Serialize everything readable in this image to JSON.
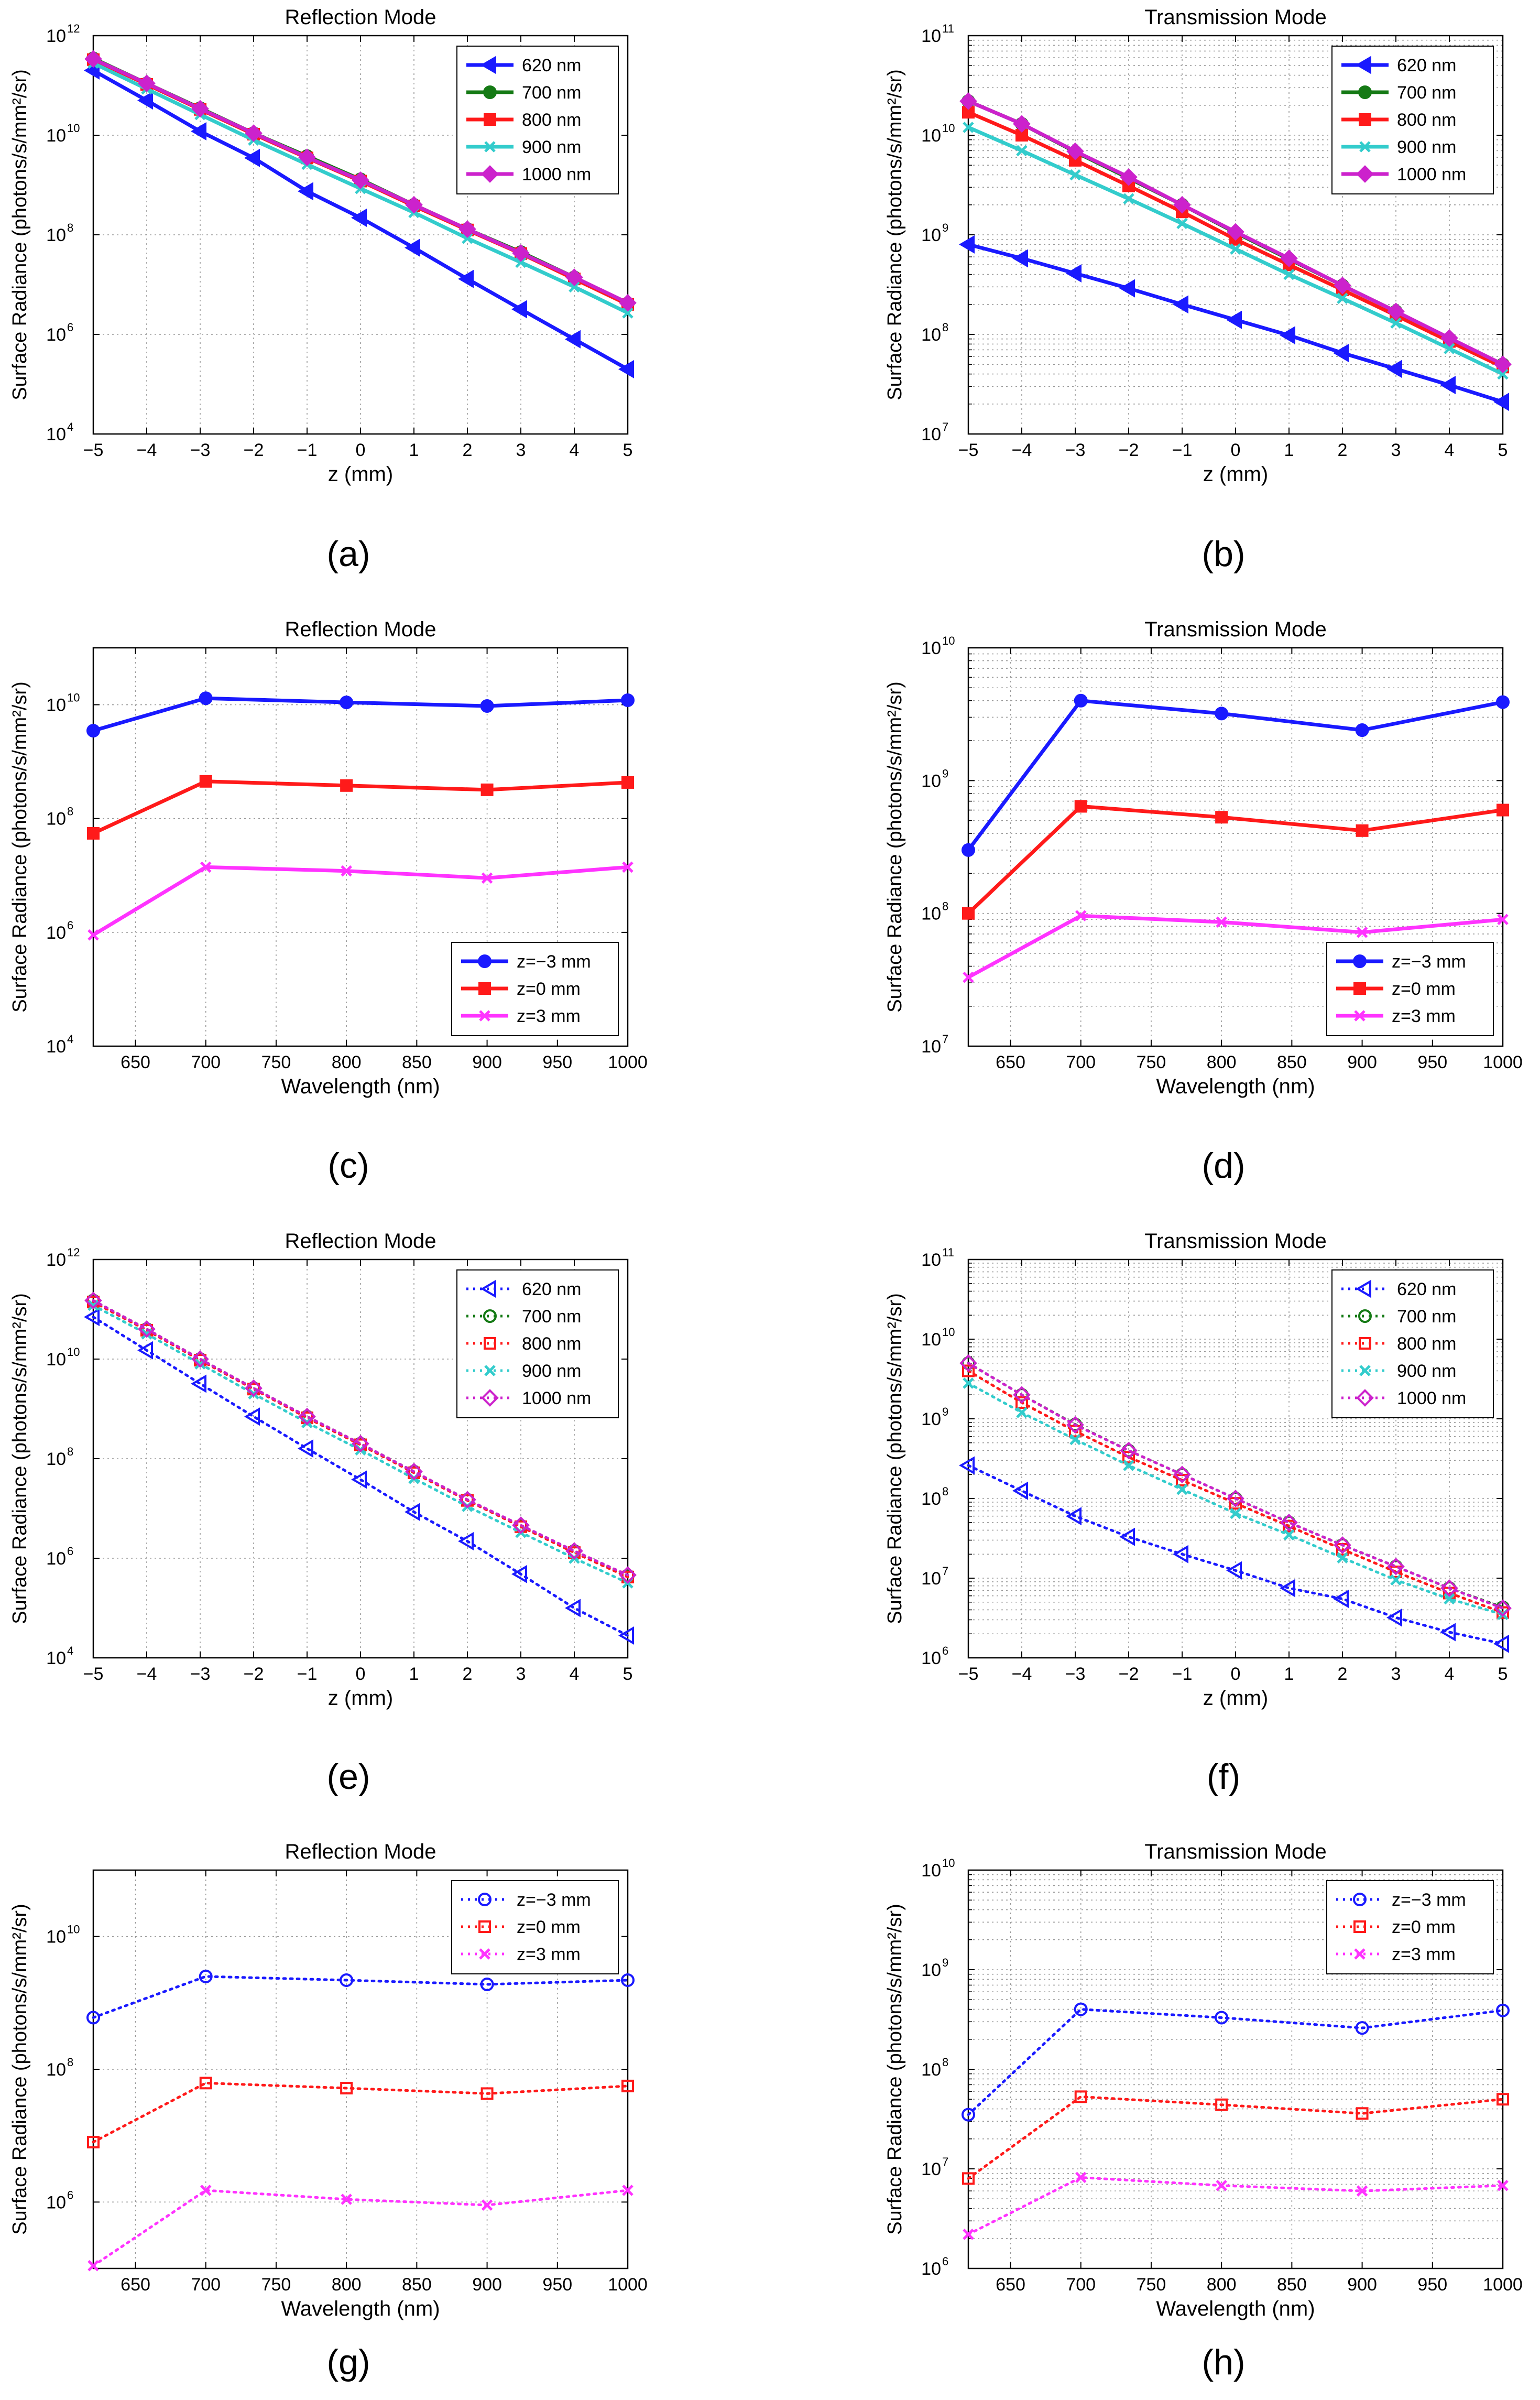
{
  "figure": {
    "captions": [
      "(a)",
      "(b)",
      "(c)",
      "(d)",
      "(e)",
      "(f)",
      "(g)",
      "(h)"
    ]
  },
  "colors": {
    "620": "#1a1aff",
    "700": "#157a15",
    "800": "#ff1a1a",
    "900": "#33cccc",
    "1000": "#cc22cc",
    "zm3": "#1a1aff",
    "z0": "#ff1a1a",
    "z3": "#ff33ff"
  },
  "chart_data": [
    {
      "id": "a",
      "type": "line",
      "title": "Reflection Mode",
      "xlabel": "z (mm)",
      "ylabel": "Surface Radiance (photons/s/mm²/sr)",
      "yscale": "log",
      "xlim": [
        -5,
        5
      ],
      "ylim_exp": [
        4,
        12
      ],
      "xticks": [
        -5,
        -4,
        -3,
        -2,
        -1,
        0,
        1,
        2,
        3,
        4,
        5
      ],
      "xticklabels": [
        "−5",
        "−4",
        "−3",
        "−2",
        "−1",
        "0",
        "1",
        "2",
        "3",
        "4",
        "5"
      ],
      "ytick_exps": [
        4,
        6,
        8,
        10,
        12
      ],
      "grid": "major",
      "linestyle": "solid",
      "legend_loc": "top-right",
      "x": [
        -5,
        -4,
        -3,
        -2,
        -1,
        0,
        1,
        2,
        3,
        4,
        5
      ],
      "series": [
        {
          "name": "620 nm",
          "color_key": "620",
          "marker": "tri-left",
          "values": [
            200000000000.0,
            50000000000.0,
            12000000000.0,
            3500000000.0,
            750000000.0,
            220000000.0,
            55000000.0,
            13000000.0,
            3200000.0,
            800000.0,
            200000.0
          ]
        },
        {
          "name": "700 nm",
          "color_key": "700",
          "marker": "circle",
          "values": [
            350000000000.0,
            110000000000.0,
            35000000000.0,
            11000000000.0,
            3800000000.0,
            1300000000.0,
            400000000.0,
            130000000.0,
            45000000.0,
            14000000.0,
            4200000.0
          ]
        },
        {
          "name": "800 nm",
          "color_key": "800",
          "marker": "square",
          "values": [
            330000000000.0,
            105000000000.0,
            33000000000.0,
            10500000000.0,
            3500000000.0,
            1200000000.0,
            380000000.0,
            125000000.0,
            42000000.0,
            13000000.0,
            4000000.0
          ]
        },
        {
          "name": "900 nm",
          "color_key": "900",
          "marker": "x",
          "values": [
            280000000000.0,
            85000000000.0,
            26000000000.0,
            8000000000.0,
            2600000000.0,
            850000000.0,
            280000000.0,
            85000000.0,
            28000000.0,
            9000000.0,
            2700000.0
          ]
        },
        {
          "name": "1000 nm",
          "color_key": "1000",
          "marker": "diamond",
          "values": [
            340000000000.0,
            110000000000.0,
            34000000000.0,
            11000000000.0,
            3600000000.0,
            1250000000.0,
            400000000.0,
            130000000.0,
            43000000.0,
            14000000.0,
            4300000.0
          ]
        }
      ]
    },
    {
      "id": "b",
      "type": "line",
      "title": "Transmission Mode",
      "xlabel": "z (mm)",
      "ylabel": "Surface Radiance (photons/s/mm²/sr)",
      "yscale": "log",
      "xlim": [
        -5,
        5
      ],
      "ylim_exp": [
        7,
        11
      ],
      "xticks": [
        -5,
        -4,
        -3,
        -2,
        -1,
        0,
        1,
        2,
        3,
        4,
        5
      ],
      "xticklabels": [
        "−5",
        "−4",
        "−3",
        "−2",
        "−1",
        "0",
        "1",
        "2",
        "3",
        "4",
        "5"
      ],
      "ytick_exps": [
        7,
        8,
        9,
        10,
        11
      ],
      "grid": "minor",
      "linestyle": "solid",
      "legend_loc": "top-right",
      "x": [
        -5,
        -4,
        -3,
        -2,
        -1,
        0,
        1,
        2,
        3,
        4,
        5
      ],
      "series": [
        {
          "name": "620 nm",
          "color_key": "620",
          "marker": "tri-left",
          "values": [
            800000000.0,
            580000000.0,
            410000000.0,
            290000000.0,
            200000000.0,
            140000000.0,
            98000000.0,
            65000000.0,
            45000000.0,
            31000000.0,
            21000000.0
          ]
        },
        {
          "name": "700 nm",
          "color_key": "700",
          "marker": "circle",
          "values": [
            22000000000.0,
            13000000000.0,
            6800000000.0,
            3700000000.0,
            2000000000.0,
            1050000000.0,
            570000000.0,
            310000000.0,
            170000000.0,
            90000000.0,
            50000000.0
          ]
        },
        {
          "name": "800 nm",
          "color_key": "800",
          "marker": "square",
          "values": [
            17000000000.0,
            10000000000.0,
            5600000000.0,
            3100000000.0,
            1700000000.0,
            900000000.0,
            500000000.0,
            280000000.0,
            155000000.0,
            85000000.0,
            47000000.0
          ]
        },
        {
          "name": "900 nm",
          "color_key": "900",
          "marker": "x",
          "values": [
            12000000000.0,
            7000000000.0,
            4000000000.0,
            2300000000.0,
            1300000000.0,
            720000000.0,
            400000000.0,
            230000000.0,
            130000000.0,
            72000000.0,
            40000000.0
          ]
        },
        {
          "name": "1000 nm",
          "color_key": "1000",
          "marker": "diamond",
          "values": [
            22000000000.0,
            13000000000.0,
            6900000000.0,
            3800000000.0,
            2000000000.0,
            1070000000.0,
            580000000.0,
            310000000.0,
            170000000.0,
            92000000.0,
            50000000.0
          ]
        }
      ]
    },
    {
      "id": "c",
      "type": "line",
      "title": "Reflection Mode",
      "xlabel": "Wavelength (nm)",
      "ylabel": "Surface Radiance (photons/s/mm²/sr)",
      "yscale": "log",
      "xlim": [
        620,
        1000
      ],
      "ylim_exp": [
        4,
        11
      ],
      "xticks": [
        650,
        700,
        750,
        800,
        850,
        900,
        950,
        1000
      ],
      "xticklabels": [
        "650",
        "700",
        "750",
        "800",
        "850",
        "900",
        "950",
        "1000"
      ],
      "ytick_exps": [
        4,
        6,
        8,
        10
      ],
      "grid": "major",
      "linestyle": "solid",
      "legend_loc": "bottom-right",
      "x": [
        620,
        700,
        800,
        900,
        1000
      ],
      "series": [
        {
          "name": "z=−3 mm",
          "color_key": "zm3",
          "marker": "circle",
          "values": [
            3500000000.0,
            13000000000.0,
            11000000000.0,
            9500000000.0,
            12000000000.0
          ]
        },
        {
          "name": "z=0 mm",
          "color_key": "z0",
          "marker": "square",
          "values": [
            55000000.0,
            450000000.0,
            380000000.0,
            320000000.0,
            430000000.0
          ]
        },
        {
          "name": "z=3 mm",
          "color_key": "z3",
          "marker": "x",
          "values": [
            900000.0,
            14000000.0,
            12000000.0,
            9000000.0,
            14000000.0
          ]
        }
      ]
    },
    {
      "id": "d",
      "type": "line",
      "title": "Transmission Mode",
      "xlabel": "Wavelength (nm)",
      "ylabel": "Surface Radiance (photons/s/mm²/sr)",
      "yscale": "log",
      "xlim": [
        620,
        1000
      ],
      "ylim_exp": [
        7,
        10
      ],
      "xticks": [
        650,
        700,
        750,
        800,
        850,
        900,
        950,
        1000
      ],
      "xticklabels": [
        "650",
        "700",
        "750",
        "800",
        "850",
        "900",
        "950",
        "1000"
      ],
      "ytick_exps": [
        7,
        8,
        9,
        10
      ],
      "grid": "minor",
      "linestyle": "solid",
      "legend_loc": "bottom-right",
      "x": [
        620,
        700,
        800,
        900,
        1000
      ],
      "series": [
        {
          "name": "z=−3 mm",
          "color_key": "zm3",
          "marker": "circle",
          "values": [
            300000000.0,
            4000000000.0,
            3200000000.0,
            2400000000.0,
            3900000000.0
          ]
        },
        {
          "name": "z=0 mm",
          "color_key": "z0",
          "marker": "square",
          "values": [
            100000000.0,
            640000000.0,
            530000000.0,
            420000000.0,
            600000000.0
          ]
        },
        {
          "name": "z=3 mm",
          "color_key": "z3",
          "marker": "x",
          "values": [
            33000000.0,
            96000000.0,
            86000000.0,
            72000000.0,
            90000000.0
          ]
        }
      ]
    },
    {
      "id": "e",
      "type": "line",
      "title": "Reflection Mode",
      "xlabel": "z (mm)",
      "ylabel": "Surface Radiance (photons/s/mm²/sr)",
      "yscale": "log",
      "xlim": [
        -5,
        5
      ],
      "ylim_exp": [
        4,
        12
      ],
      "xticks": [
        -5,
        -4,
        -3,
        -2,
        -1,
        0,
        1,
        2,
        3,
        4,
        5
      ],
      "xticklabels": [
        "−5",
        "−4",
        "−3",
        "−2",
        "−1",
        "0",
        "1",
        "2",
        "3",
        "4",
        "5"
      ],
      "ytick_exps": [
        4,
        6,
        8,
        10,
        12
      ],
      "grid": "major",
      "linestyle": "dotted",
      "legend_loc": "top-right",
      "x": [
        -5,
        -4,
        -3,
        -2,
        -1,
        0,
        1,
        2,
        3,
        4,
        5
      ],
      "series": [
        {
          "name": "620 nm",
          "color_key": "620",
          "marker": "tri-left",
          "values": [
            70000000000.0,
            15000000000.0,
            3200000000.0,
            700000000.0,
            160000000.0,
            38000000.0,
            8500000.0,
            2200000.0,
            480000.0,
            100000.0,
            28000.0
          ]
        },
        {
          "name": "700 nm",
          "color_key": "700",
          "marker": "circle",
          "values": [
            150000000000.0,
            40000000000.0,
            10000000000.0,
            2600000000.0,
            700000000.0,
            200000000.0,
            55000000.0,
            15000000.0,
            4500000.0,
            1400000.0,
            450000.0
          ]
        },
        {
          "name": "800 nm",
          "color_key": "800",
          "marker": "square",
          "values": [
            140000000000.0,
            38000000000.0,
            9500000000.0,
            2500000000.0,
            660000000.0,
            190000000.0,
            52000000.0,
            14500000.0,
            4300000.0,
            1300000.0,
            420000.0
          ]
        },
        {
          "name": "900 nm",
          "color_key": "900",
          "marker": "x",
          "values": [
            120000000000.0,
            32000000000.0,
            8000000000.0,
            2000000000.0,
            530000000.0,
            150000000.0,
            40000000.0,
            11000000.0,
            3300000.0,
            1000000.0,
            320000.0
          ]
        },
        {
          "name": "1000 nm",
          "color_key": "1000",
          "marker": "diamond",
          "values": [
            150000000000.0,
            40000000000.0,
            10000000000.0,
            2600000000.0,
            700000000.0,
            200000000.0,
            55000000.0,
            15000000.0,
            4600000.0,
            1400000.0,
            460000.0
          ]
        }
      ]
    },
    {
      "id": "f",
      "type": "line",
      "title": "Transmission Mode",
      "xlabel": "z (mm)",
      "ylabel": "Surface Radiance (photons/s/mm²/sr)",
      "yscale": "log",
      "xlim": [
        -5,
        5
      ],
      "ylim_exp": [
        6,
        11
      ],
      "xticks": [
        -5,
        -4,
        -3,
        -2,
        -1,
        0,
        1,
        2,
        3,
        4,
        5
      ],
      "xticklabels": [
        "−5",
        "−4",
        "−3",
        "−2",
        "−1",
        "0",
        "1",
        "2",
        "3",
        "4",
        "5"
      ],
      "ytick_exps": [
        6,
        7,
        8,
        9,
        10,
        11
      ],
      "grid": "minor",
      "linestyle": "dotted",
      "legend_loc": "top-right",
      "x": [
        -5,
        -4,
        -3,
        -2,
        -1,
        0,
        1,
        2,
        3,
        4,
        5
      ],
      "series": [
        {
          "name": "620 nm",
          "color_key": "620",
          "marker": "tri-left",
          "values": [
            260000000.0,
            125000000.0,
            60000000.0,
            33000000.0,
            20000000.0,
            12500000.0,
            7500000.0,
            5500000.0,
            3200000.0,
            2100000.0,
            1500000.0
          ]
        },
        {
          "name": "700 nm",
          "color_key": "700",
          "marker": "circle",
          "values": [
            5000000000.0,
            2000000000.0,
            850000000.0,
            400000000.0,
            200000000.0,
            100000000.0,
            50000000.0,
            26000000.0,
            14000000.0,
            7500000.0,
            4300000.0
          ]
        },
        {
          "name": "800 nm",
          "color_key": "800",
          "marker": "square",
          "values": [
            4000000000.0,
            1600000000.0,
            700000000.0,
            330000000.0,
            170000000.0,
            87000000.0,
            45000000.0,
            23000000.0,
            12000000.0,
            6500000.0,
            3700000.0
          ]
        },
        {
          "name": "900 nm",
          "color_key": "900",
          "marker": "x",
          "values": [
            2800000000.0,
            1200000000.0,
            550000000.0,
            260000000.0,
            130000000.0,
            65000000.0,
            35000000.0,
            18000000.0,
            9500000.0,
            5500000.0,
            3500000.0
          ]
        },
        {
          "name": "1000 nm",
          "color_key": "1000",
          "marker": "diamond",
          "values": [
            5000000000.0,
            2000000000.0,
            840000000.0,
            400000000.0,
            200000000.0,
            100000000.0,
            50000000.0,
            26000000.0,
            14000000.0,
            7500000.0,
            4200000.0
          ]
        }
      ]
    },
    {
      "id": "g",
      "type": "line",
      "title": "Reflection Mode",
      "xlabel": "Wavelength (nm)",
      "ylabel": "Surface Radiance (photons/s/mm²/sr)",
      "yscale": "log",
      "xlim": [
        620,
        1000
      ],
      "ylim_exp": [
        5,
        11
      ],
      "xticks": [
        650,
        700,
        750,
        800,
        850,
        900,
        950,
        1000
      ],
      "xticklabels": [
        "650",
        "700",
        "750",
        "800",
        "850",
        "900",
        "950",
        "1000"
      ],
      "ytick_exps": [
        6,
        8,
        10
      ],
      "grid": "major",
      "linestyle": "dotted",
      "legend_loc": "top-right",
      "x": [
        620,
        700,
        800,
        900,
        1000
      ],
      "series": [
        {
          "name": "z=−3 mm",
          "color_key": "zm3",
          "marker": "circle",
          "values": [
            600000000.0,
            2500000000.0,
            2200000000.0,
            1900000000.0,
            2200000000.0
          ]
        },
        {
          "name": "z=0 mm",
          "color_key": "z0",
          "marker": "square",
          "values": [
            8000000.0,
            62000000.0,
            52000000.0,
            43000000.0,
            56000000.0
          ]
        },
        {
          "name": "z=3 mm",
          "color_key": "z3",
          "marker": "x",
          "values": [
            110000.0,
            1500000.0,
            1100000.0,
            900000.0,
            1500000.0
          ]
        }
      ]
    },
    {
      "id": "h",
      "type": "line",
      "title": "Transmission Mode",
      "xlabel": "Wavelength (nm)",
      "ylabel": "Surface Radiance (photons/s/mm²/sr)",
      "yscale": "log",
      "xlim": [
        620,
        1000
      ],
      "ylim_exp": [
        6,
        10
      ],
      "xticks": [
        650,
        700,
        750,
        800,
        850,
        900,
        950,
        1000
      ],
      "xticklabels": [
        "650",
        "700",
        "750",
        "800",
        "850",
        "900",
        "950",
        "1000"
      ],
      "ytick_exps": [
        6,
        7,
        8,
        9,
        10
      ],
      "grid": "minor",
      "linestyle": "dotted",
      "legend_loc": "top-right",
      "x": [
        620,
        700,
        800,
        900,
        1000
      ],
      "series": [
        {
          "name": "z=−3 mm",
          "color_key": "zm3",
          "marker": "circle",
          "values": [
            35000000.0,
            400000000.0,
            330000000.0,
            260000000.0,
            390000000.0
          ]
        },
        {
          "name": "z=0 mm",
          "color_key": "z0",
          "marker": "square",
          "values": [
            8000000.0,
            53000000.0,
            44000000.0,
            36000000.0,
            50000000.0
          ]
        },
        {
          "name": "z=3 mm",
          "color_key": "z3",
          "marker": "x",
          "values": [
            2200000.0,
            8200000.0,
            6800000.0,
            6000000.0,
            6800000.0
          ]
        }
      ]
    }
  ]
}
